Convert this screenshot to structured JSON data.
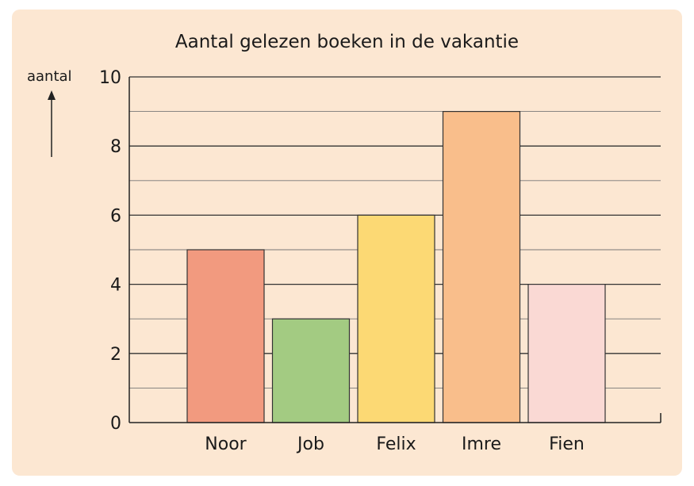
{
  "chart_data": {
    "type": "bar",
    "title": "Aantal gelezen boeken in de vakantie",
    "ylabel": "aantal",
    "xlabel": "",
    "categories": [
      "Noor",
      "Job",
      "Felix",
      "Imre",
      "Fien"
    ],
    "values": [
      5,
      3,
      6,
      9,
      4
    ],
    "colors": [
      "#f29a7f",
      "#a3cb82",
      "#fcd974",
      "#f9be8b",
      "#fad9d4"
    ],
    "ylim": [
      0,
      10
    ],
    "yticks": [
      0,
      2,
      4,
      6,
      8,
      10
    ],
    "grid": true
  }
}
